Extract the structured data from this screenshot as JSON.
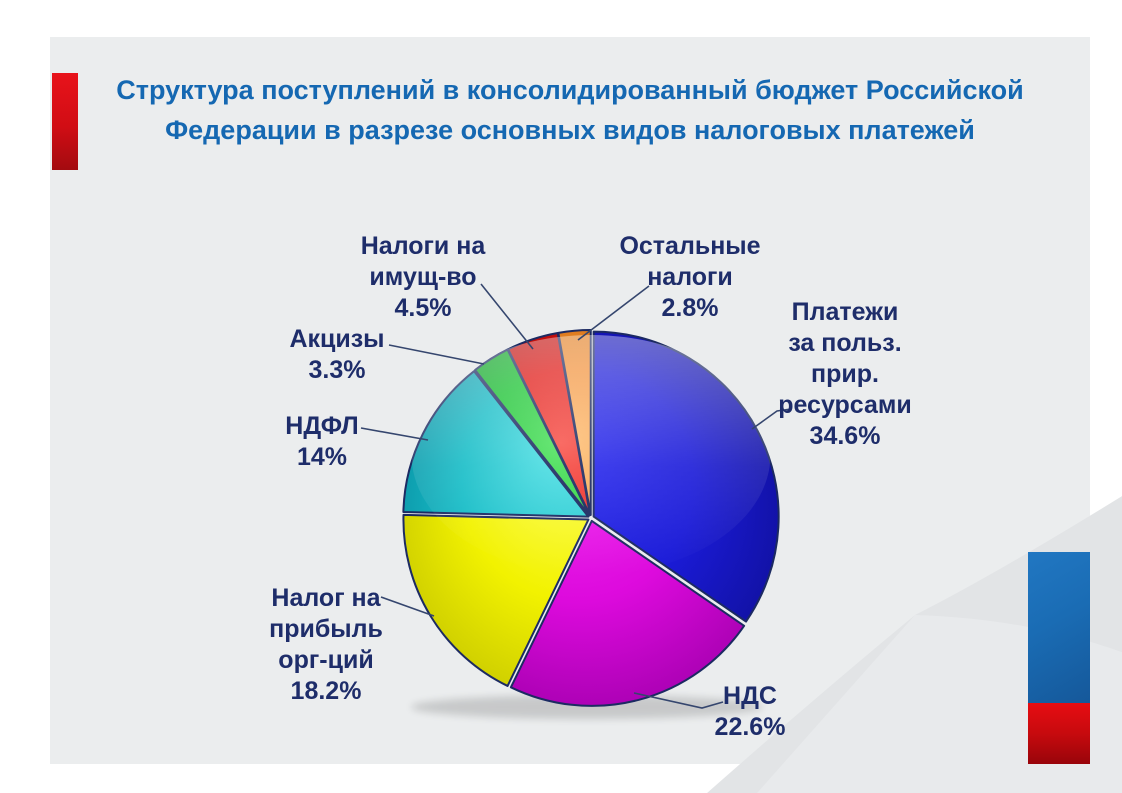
{
  "slide": {
    "title": "Структура поступлений в консолидированный бюджет Российской Федерации в разрезе основных видов налоговых платежей",
    "title_lines": [
      "Структура поступлений в консолидированный бюджет Российской",
      "Федерации в разрезе основных видов налоговых платежей"
    ],
    "colors": {
      "page_background": "#ffffff",
      "slide_background": "#ebedee",
      "title_text": "#1568b2",
      "label_text": "#1e2d6a",
      "leader_line": "#35466e",
      "slice_outline": "#1c2a62",
      "accent_red": "#d10d14",
      "accent_blue": "#1a6cb4"
    }
  },
  "chart_data": {
    "type": "pie",
    "title": "Структура поступлений в консолидированный бюджет Российской Федерации в разрезе основных видов налоговых платежей",
    "direction": "clockwise",
    "start_angle_deg": 0,
    "legend": "callout labels with leader lines",
    "units": "%",
    "slices": [
      {
        "label": "Платежи за польз. прир. ресурсами",
        "label_lines": [
          "Платежи",
          "за польз.",
          "прир.",
          "ресурсами"
        ],
        "value": 34.6,
        "percent_label": "34.6%",
        "color": "#1b1bd8",
        "color_light": "#2d2df2",
        "color_dark": "#10109c"
      },
      {
        "label": "НДС",
        "label_lines": [
          "НДС"
        ],
        "value": 22.6,
        "percent_label": "22.6%",
        "color": "#dd0add",
        "color_light": "#f42cf4",
        "color_dark": "#a400ae"
      },
      {
        "label": "Налог на прибыль орг-ций",
        "label_lines": [
          "Налог на",
          "прибыль",
          "орг-ций"
        ],
        "value": 18.2,
        "percent_label": "18.2%",
        "color": "#f2f200",
        "color_light": "#ffff59",
        "color_dark": "#c9c900"
      },
      {
        "label": "НДФЛ",
        "label_lines": [
          "НДФЛ"
        ],
        "value": 14,
        "percent_label": "14%",
        "color": "#17bdc7",
        "color_light": "#55e3e7",
        "color_dark": "#0a91a4"
      },
      {
        "label": "Акцизы",
        "label_lines": [
          "Акцизы"
        ],
        "value": 3.3,
        "percent_label": "3.3%",
        "color": "#17c22f",
        "color_light": "#4fe35e",
        "color_dark": "#0a9322"
      },
      {
        "label": "Налоги на имущ-во",
        "label_lines": [
          "Налоги на",
          "имущ-во"
        ],
        "value": 4.5,
        "percent_label": "4.5%",
        "color": "#e01511",
        "color_light": "#f8524a",
        "color_dark": "#ab0909"
      },
      {
        "label": "Остальные налоги",
        "label_lines": [
          "Остальные",
          "налоги"
        ],
        "value": 2.8,
        "percent_label": "2.8%",
        "color": "#f2913a",
        "color_light": "#ffc177",
        "color_dark": "#d26e0e"
      }
    ]
  }
}
